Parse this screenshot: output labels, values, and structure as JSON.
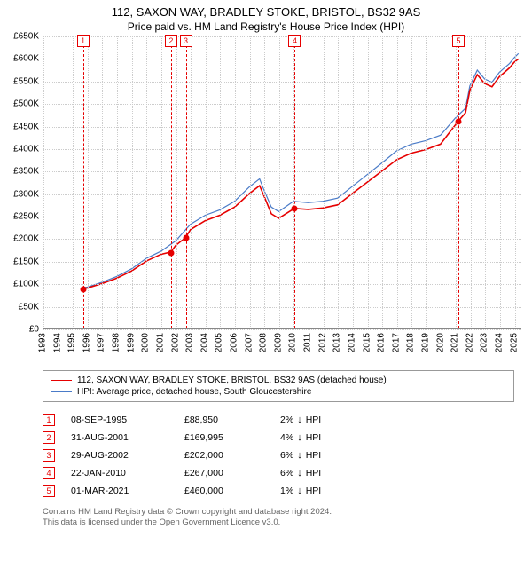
{
  "title": {
    "line1": "112, SAXON WAY, BRADLEY STOKE, BRISTOL, BS32 9AS",
    "line2": "Price paid vs. HM Land Registry's House Price Index (HPI)"
  },
  "chart": {
    "type": "line",
    "xlim": [
      1993,
      2025.5
    ],
    "ylim": [
      0,
      650
    ],
    "y_step": 50,
    "y_unit_prefix": "£",
    "y_unit_suffix": "K",
    "x_ticks": [
      1993,
      1994,
      1995,
      1996,
      1997,
      1998,
      1999,
      2000,
      2001,
      2002,
      2003,
      2004,
      2005,
      2006,
      2007,
      2008,
      2009,
      2010,
      2011,
      2012,
      2013,
      2014,
      2015,
      2016,
      2017,
      2018,
      2019,
      2020,
      2021,
      2022,
      2023,
      2024,
      2025
    ],
    "grid_color": "#cccccc",
    "axis_color": "#888888",
    "background_color": "#ffffff",
    "marker_color": "#e60000",
    "series": [
      {
        "id": "subject",
        "label": "112, SAXON WAY, BRADLEY STOKE, BRISTOL, BS32 9AS (detached house)",
        "color": "#e60000",
        "width": 1.6,
        "data": [
          [
            1995.7,
            89
          ],
          [
            1996,
            90
          ],
          [
            1997,
            100
          ],
          [
            1998,
            112
          ],
          [
            1999,
            128
          ],
          [
            2000,
            150
          ],
          [
            2001,
            165
          ],
          [
            2001.66,
            170
          ],
          [
            2002,
            185
          ],
          [
            2002.66,
            202
          ],
          [
            2003,
            220
          ],
          [
            2004,
            240
          ],
          [
            2005,
            252
          ],
          [
            2006,
            270
          ],
          [
            2007,
            300
          ],
          [
            2007.7,
            318
          ],
          [
            2008,
            295
          ],
          [
            2008.5,
            255
          ],
          [
            2009,
            245
          ],
          [
            2010.06,
            267
          ],
          [
            2011,
            265
          ],
          [
            2012,
            268
          ],
          [
            2013,
            275
          ],
          [
            2014,
            300
          ],
          [
            2015,
            325
          ],
          [
            2016,
            350
          ],
          [
            2017,
            375
          ],
          [
            2018,
            390
          ],
          [
            2019,
            398
          ],
          [
            2020,
            410
          ],
          [
            2021.17,
            460
          ],
          [
            2021.7,
            480
          ],
          [
            2022,
            530
          ],
          [
            2022.5,
            565
          ],
          [
            2023,
            545
          ],
          [
            2023.5,
            538
          ],
          [
            2024,
            560
          ],
          [
            2024.7,
            580
          ],
          [
            2025,
            592
          ],
          [
            2025.3,
            600
          ]
        ]
      },
      {
        "id": "hpi",
        "label": "HPI: Average price, detached house, South Gloucestershire",
        "color": "#4a7bc8",
        "width": 1.2,
        "data": [
          [
            1995.7,
            91
          ],
          [
            1996,
            92
          ],
          [
            1997,
            103
          ],
          [
            1998,
            116
          ],
          [
            1999,
            133
          ],
          [
            2000,
            156
          ],
          [
            2001,
            172
          ],
          [
            2002,
            195
          ],
          [
            2003,
            232
          ],
          [
            2004,
            252
          ],
          [
            2005,
            264
          ],
          [
            2006,
            283
          ],
          [
            2007,
            315
          ],
          [
            2007.7,
            333
          ],
          [
            2008,
            308
          ],
          [
            2008.5,
            270
          ],
          [
            2009,
            260
          ],
          [
            2010,
            283
          ],
          [
            2011,
            280
          ],
          [
            2012,
            283
          ],
          [
            2013,
            290
          ],
          [
            2014,
            316
          ],
          [
            2015,
            342
          ],
          [
            2016,
            368
          ],
          [
            2017,
            395
          ],
          [
            2018,
            410
          ],
          [
            2019,
            418
          ],
          [
            2020,
            430
          ],
          [
            2021,
            468
          ],
          [
            2021.7,
            490
          ],
          [
            2022,
            540
          ],
          [
            2022.5,
            575
          ],
          [
            2023,
            555
          ],
          [
            2023.5,
            548
          ],
          [
            2024,
            570
          ],
          [
            2024.7,
            590
          ],
          [
            2025,
            602
          ],
          [
            2025.3,
            612
          ]
        ]
      }
    ],
    "markers": [
      {
        "n": "1",
        "x": 1995.69,
        "y": 89
      },
      {
        "n": "2",
        "x": 2001.66,
        "y": 170
      },
      {
        "n": "3",
        "x": 2002.66,
        "y": 202
      },
      {
        "n": "4",
        "x": 2010.06,
        "y": 267
      },
      {
        "n": "5",
        "x": 2021.17,
        "y": 460
      }
    ]
  },
  "legend": {
    "items": [
      {
        "color": "#e60000",
        "width": 1.6,
        "label_ref": "chart.series.0.label"
      },
      {
        "color": "#4a7bc8",
        "width": 1.2,
        "label_ref": "chart.series.1.label"
      }
    ]
  },
  "sales": [
    {
      "n": "1",
      "date": "08-SEP-1995",
      "price": "£88,950",
      "diff": "2%",
      "dir": "↓",
      "vs": "HPI"
    },
    {
      "n": "2",
      "date": "31-AUG-2001",
      "price": "£169,995",
      "diff": "4%",
      "dir": "↓",
      "vs": "HPI"
    },
    {
      "n": "3",
      "date": "29-AUG-2002",
      "price": "£202,000",
      "diff": "6%",
      "dir": "↓",
      "vs": "HPI"
    },
    {
      "n": "4",
      "date": "22-JAN-2010",
      "price": "£267,000",
      "diff": "6%",
      "dir": "↓",
      "vs": "HPI"
    },
    {
      "n": "5",
      "date": "01-MAR-2021",
      "price": "£460,000",
      "diff": "1%",
      "dir": "↓",
      "vs": "HPI"
    }
  ],
  "footer": {
    "line1": "Contains HM Land Registry data © Crown copyright and database right 2024.",
    "line2": "This data is licensed under the Open Government Licence v3.0."
  }
}
